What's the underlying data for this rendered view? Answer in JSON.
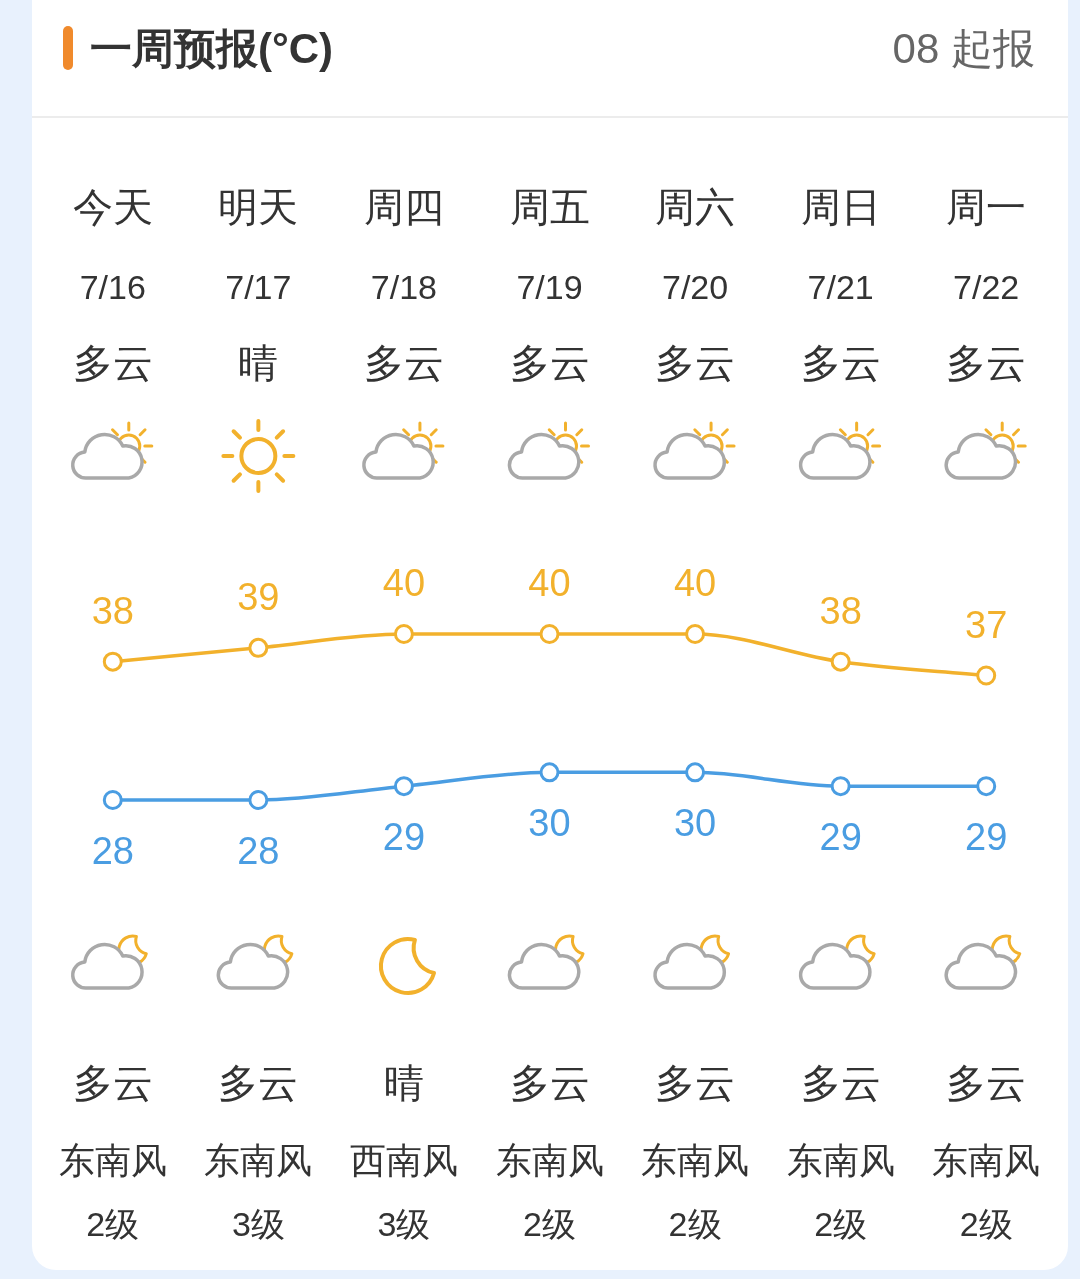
{
  "chart_data": {
    "type": "line",
    "title": "一周预报(°C)",
    "subtitle": "08 起报",
    "categories": [
      "今天\n7/16\n多云",
      "明天\n7/17\n晴",
      "周四\n7/18\n多云",
      "周五\n7/19\n多云",
      "周六\n7/20\n多云",
      "周日\n7/21\n多云",
      "周一\n7/22\n多云"
    ],
    "series": [
      {
        "color": "#f2b12c",
        "values": [
          38,
          39,
          40,
          40,
          40,
          38,
          37
        ]
      },
      {
        "color": "#4a9de2",
        "values": [
          28,
          28,
          29,
          30,
          30,
          29,
          29
        ]
      }
    ],
    "annotations": [
      "多云",
      "多云",
      "晴",
      "多云",
      "多云",
      "多云",
      "多云",
      "东南风",
      "东南风",
      "西南风",
      "东南风",
      "东南风",
      "东南风",
      "东南风",
      "2级",
      "3级",
      "3级",
      "2级",
      "2级",
      "2级",
      "2级"
    ],
    "data_labels": true,
    "marker": "circle",
    "tick_labels": "x"
  }
}
